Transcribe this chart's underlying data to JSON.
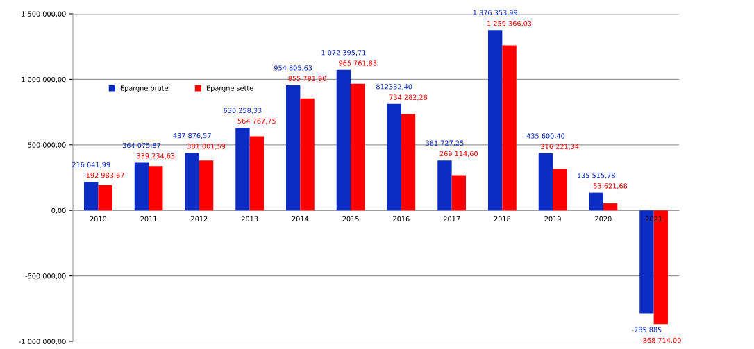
{
  "chart_data": {
    "type": "bar",
    "categories": [
      "2010",
      "2011",
      "2012",
      "2013",
      "2014",
      "2015",
      "2016",
      "2017",
      "2018",
      "2019",
      "2020",
      "2021"
    ],
    "series": [
      {
        "name": "Epargne brute",
        "color": "#0a2bc4",
        "values": [
          216641.99,
          364075.87,
          437876.57,
          630258.33,
          954805.63,
          1072395.71,
          812332.4,
          381727.25,
          1376353.99,
          435600.4,
          135515.78,
          -785885
        ],
        "value_labels": [
          "216 641,99",
          "364 075,87",
          "437 876,57",
          "630 258,33",
          "954 805,63",
          "1 072 395,71",
          "812332,40",
          "381 727,25",
          "1 376 353,99",
          "435 600,40",
          "135 515,78",
          "-785 885"
        ]
      },
      {
        "name": "Epargne sette",
        "color": "#ff0000",
        "values": [
          192983.67,
          339234.63,
          381001.59,
          564767.75,
          855781.9,
          965761.83,
          734282.28,
          269114.6,
          1259366.03,
          316221.34,
          53621.68,
          -868714.0
        ],
        "value_labels": [
          "192 983,67",
          "339 234,63",
          "381 001,59",
          "564 767,75",
          "855 781,90",
          "965 761,83",
          "734 282,28",
          "269 114,60",
          "1 259 366,03",
          "316 221,34",
          "53 621,68",
          "-868 714,00"
        ]
      }
    ],
    "ylim": [
      -1000000,
      1500000
    ],
    "yticks": [
      {
        "value": -1000000,
        "label": "-1 000 000,00"
      },
      {
        "value": -500000,
        "label": "-500 000,00"
      },
      {
        "value": 0,
        "label": "0,00"
      },
      {
        "value": 500000,
        "label": "500 000,00"
      },
      {
        "value": 1000000,
        "label": "1 000 000,00"
      },
      {
        "value": 1500000,
        "label": "1 500 000,00"
      }
    ],
    "grid": "y",
    "legend": "top left"
  }
}
